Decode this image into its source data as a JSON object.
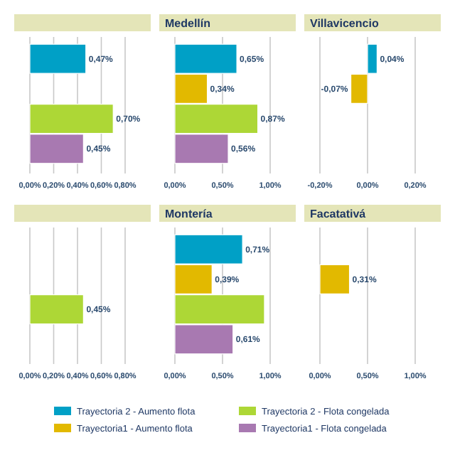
{
  "chart_data": [
    {
      "type": "bar",
      "orientation": "horizontal",
      "categories": [
        null
      ],
      "xlim": [
        0,
        0.8
      ],
      "xticks": [
        {
          "value": 0,
          "label": "0,00%"
        },
        {
          "value": 0.2,
          "label": "0,20%"
        },
        {
          "value": 0.4,
          "label": "0,40%"
        },
        {
          "value": 0.6,
          "label": "0,60%"
        },
        {
          "value": 0.8,
          "label": "0,80%"
        }
      ],
      "grid": "x",
      "legend": "bottom",
      "series": [
        {
          "name": "Trayectoria 2 - Aumento flota",
          "color": "#00a0c6",
          "values": [
            0.47
          ],
          "value_labels": [
            "0,47%"
          ]
        },
        {
          "name": "Trayectoria1 - Aumento flota",
          "color": "#e2b900",
          "values": [
            null
          ],
          "value_labels": [
            null
          ]
        },
        {
          "name": "Trayectoria 2 - Flota congelada",
          "color": "#add736",
          "values": [
            0.7
          ],
          "value_labels": [
            "0,70%"
          ]
        },
        {
          "name": "Trayectoria1 - Flota congelada",
          "color": "#a879b1",
          "values": [
            0.45
          ],
          "value_labels": [
            "0,45%"
          ]
        }
      ]
    },
    {
      "type": "bar",
      "orientation": "horizontal",
      "title": "Medellín",
      "categories": [
        null
      ],
      "xlim": [
        0,
        1
      ],
      "xticks": [
        {
          "value": 0,
          "label": "0,00%"
        },
        {
          "value": 0.5,
          "label": "0,50%"
        },
        {
          "value": 1,
          "label": "1,00%"
        }
      ],
      "grid": "x",
      "series": [
        {
          "color": "#00a0c6",
          "values": [
            0.65
          ],
          "value_labels": [
            "0,65%"
          ]
        },
        {
          "color": "#e2b900",
          "values": [
            0.34
          ],
          "value_labels": [
            "0,34%"
          ]
        },
        {
          "color": "#add736",
          "values": [
            0.87
          ],
          "value_labels": [
            "0,87%"
          ]
        },
        {
          "color": "#a879b1",
          "values": [
            0.56
          ],
          "value_labels": [
            "0,56%"
          ]
        }
      ]
    },
    {
      "type": "bar",
      "orientation": "horizontal",
      "title": "Villavicencio",
      "categories": [
        null
      ],
      "xlim": [
        -0.2,
        0.2
      ],
      "xticks": [
        {
          "value": -0.2,
          "label": "-0,20%"
        },
        {
          "value": 0,
          "label": "0,00%"
        },
        {
          "value": 0.2,
          "label": "0,20%"
        }
      ],
      "grid": "x",
      "series": [
        {
          "color": "#00a0c6",
          "values": [
            0.04
          ],
          "value_labels": [
            "0,04%"
          ]
        },
        {
          "color": "#e2b900",
          "values": [
            -0.07
          ],
          "value_labels": [
            "-0,07%"
          ]
        },
        {
          "values": [
            null
          ],
          "value_labels": [
            null
          ]
        },
        {
          "values": [
            null
          ],
          "value_labels": [
            null
          ]
        }
      ]
    },
    {
      "type": "bar",
      "orientation": "horizontal",
      "categories": [
        null
      ],
      "xlim": [
        0,
        0.8
      ],
      "xticks": [
        {
          "value": 0,
          "label": "0,00%"
        },
        {
          "value": 0.2,
          "label": "0,20%"
        },
        {
          "value": 0.4,
          "label": "0,40%"
        },
        {
          "value": 0.6,
          "label": "0,60%"
        },
        {
          "value": 0.8,
          "label": "0,80%"
        }
      ],
      "grid": "x",
      "series": [
        {
          "values": [
            null
          ],
          "value_labels": [
            null
          ]
        },
        {
          "values": [
            null
          ],
          "value_labels": [
            null
          ]
        },
        {
          "color": "#add736",
          "values": [
            0.45
          ],
          "value_labels": [
            "0,45%"
          ]
        },
        {
          "values": [
            null
          ],
          "value_labels": [
            null
          ]
        }
      ]
    },
    {
      "type": "bar",
      "orientation": "horizontal",
      "title": "Montería",
      "categories": [
        null
      ],
      "xlim": [
        0,
        1
      ],
      "xticks": [
        {
          "value": 0,
          "label": "0,00%"
        },
        {
          "value": 0.5,
          "label": "0,50%"
        },
        {
          "value": 1,
          "label": "1,00%"
        }
      ],
      "grid": "x",
      "series": [
        {
          "color": "#00a0c6",
          "values": [
            0.71
          ],
          "value_labels": [
            "0,71%"
          ]
        },
        {
          "color": "#e2b900",
          "values": [
            0.39
          ],
          "value_labels": [
            "0,39%"
          ]
        },
        {
          "color": "#add736",
          "values": [
            0.94
          ],
          "value_labels": [
            null
          ]
        },
        {
          "color": "#a879b1",
          "values": [
            0.61
          ],
          "value_labels": [
            "0,61%"
          ]
        }
      ]
    },
    {
      "type": "bar",
      "orientation": "horizontal",
      "title": "Facatativá",
      "categories": [
        null
      ],
      "xlim": [
        0,
        1
      ],
      "xticks": [
        {
          "value": 0,
          "label": "0,00%"
        },
        {
          "value": 0.5,
          "label": "0,50%"
        },
        {
          "value": 1,
          "label": "1,00%"
        }
      ],
      "grid": "x",
      "series": [
        {
          "values": [
            null
          ],
          "value_labels": [
            null
          ]
        },
        {
          "color": "#e2b900",
          "values": [
            0.31
          ],
          "value_labels": [
            "0,31%"
          ]
        },
        {
          "values": [
            null
          ],
          "value_labels": [
            null
          ]
        },
        {
          "values": [
            null
          ],
          "value_labels": [
            null
          ]
        }
      ]
    }
  ]
}
